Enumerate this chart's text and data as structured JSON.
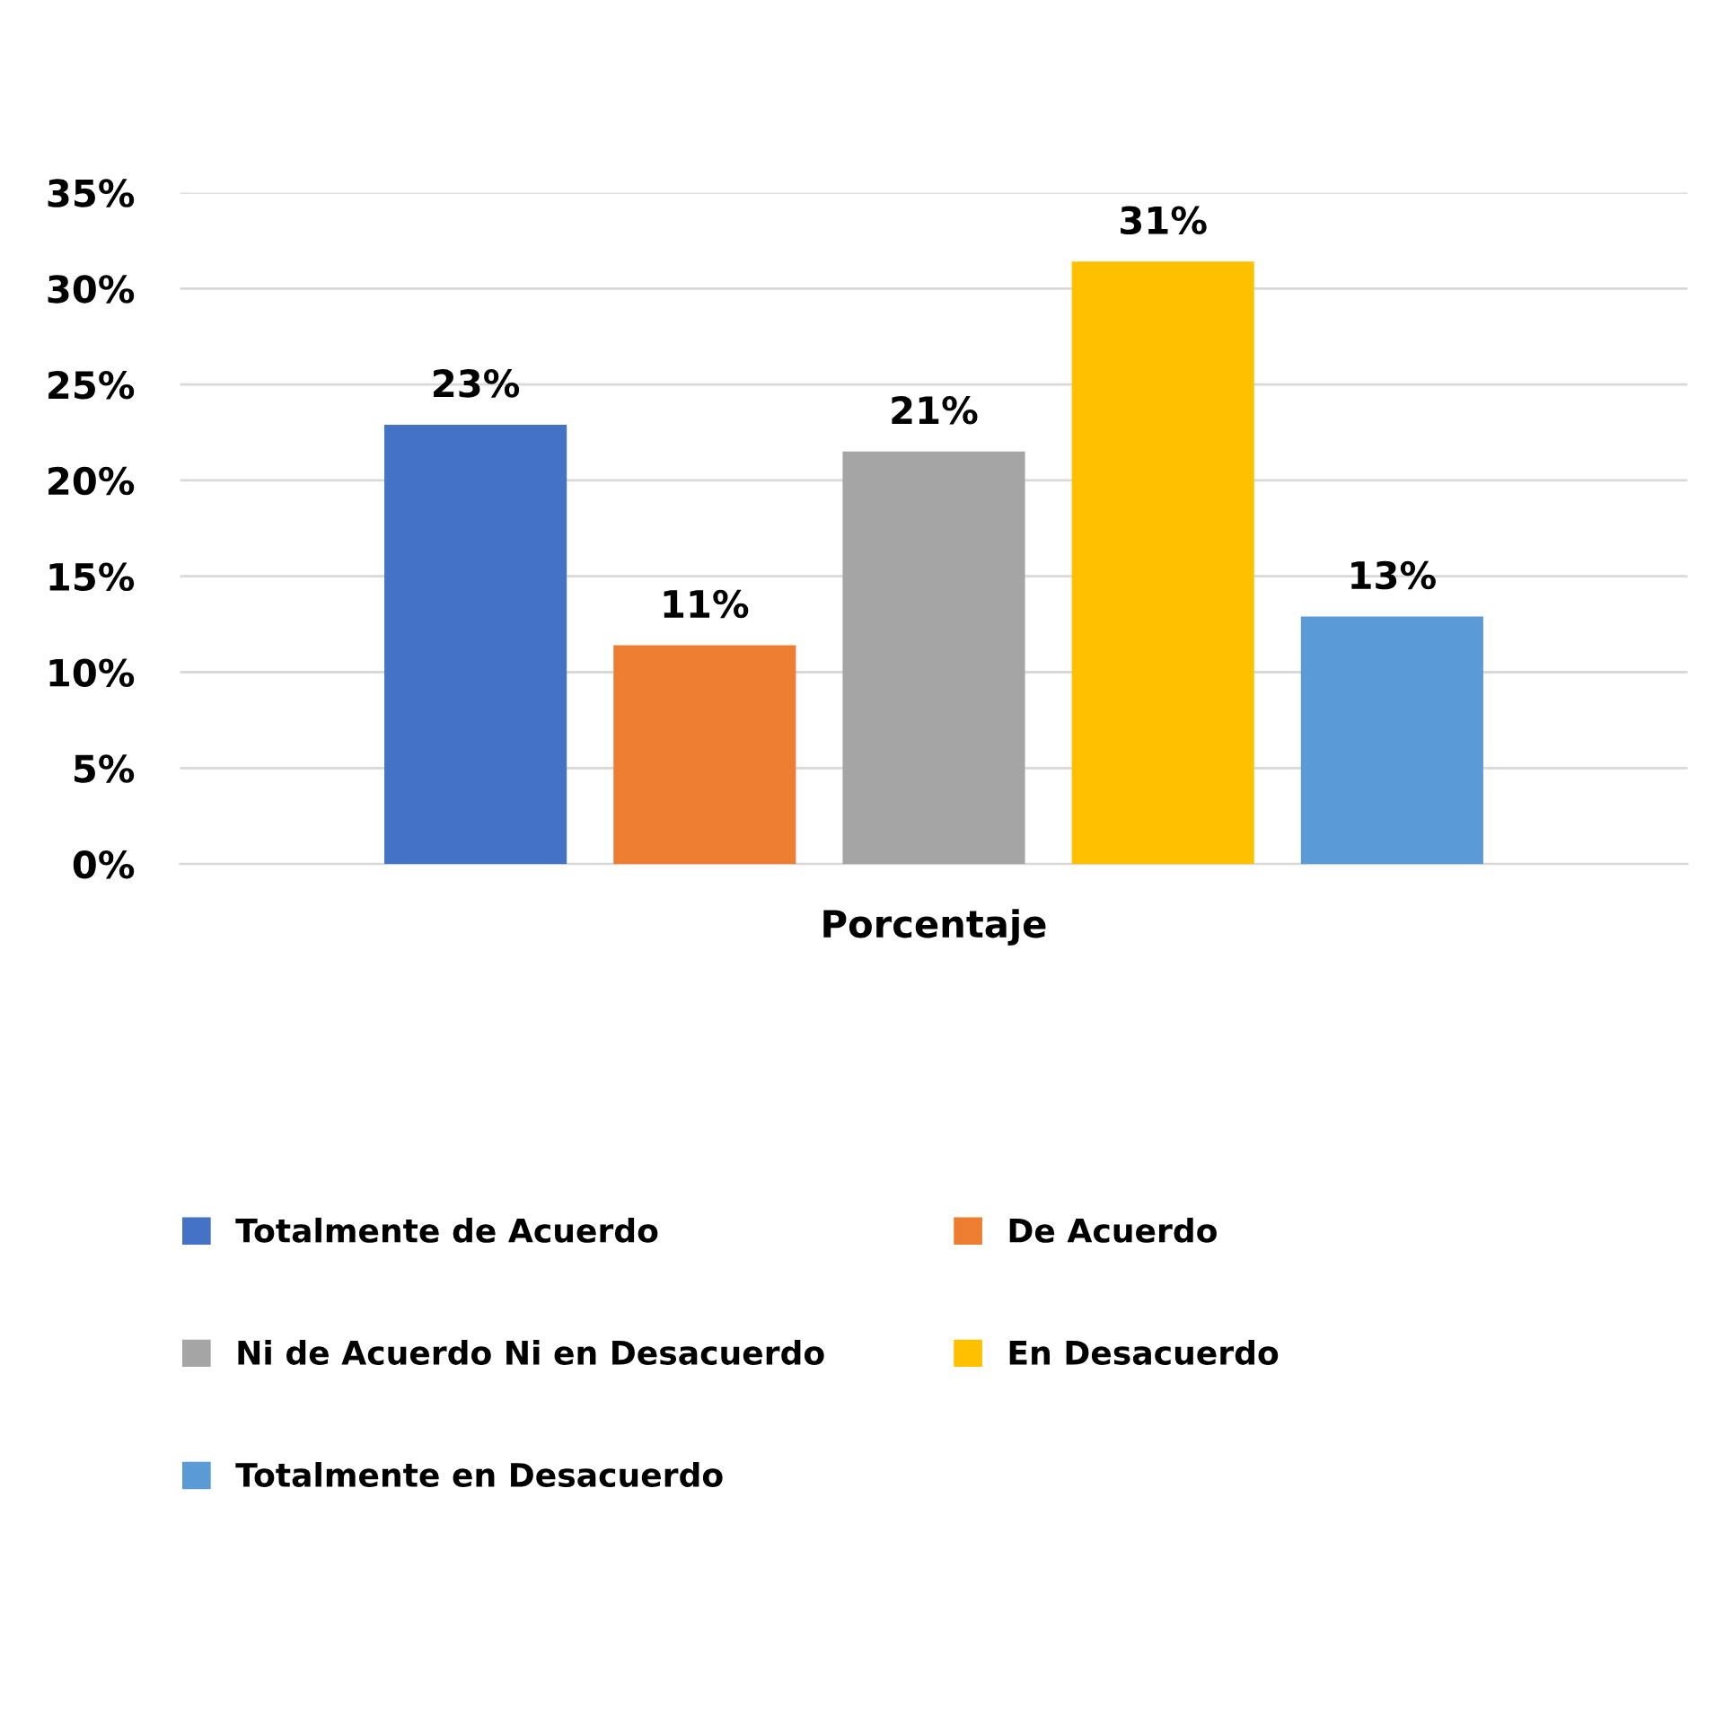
{
  "chart_data": {
    "type": "bar",
    "categories": [
      "Porcentaje"
    ],
    "series": [
      {
        "name": "Totalmente de Acuerdo",
        "color": "#4472c4",
        "values": [
          22.9
        ],
        "value_labels": [
          "23%"
        ]
      },
      {
        "name": "De Acuerdo",
        "color": "#ed7d31",
        "values": [
          11.4
        ],
        "value_labels": [
          "11%"
        ]
      },
      {
        "name": "Ni de Acuerdo Ni en Desacuerdo",
        "color": "#a5a5a5",
        "values": [
          21.5
        ],
        "value_labels": [
          "21%"
        ]
      },
      {
        "name": "En Desacuerdo",
        "color": "#ffc000",
        "values": [
          31.4
        ],
        "value_labels": [
          "31%"
        ]
      },
      {
        "name": "Totalmente en Desacuerdo",
        "color": "#5b9bd5",
        "values": [
          12.9
        ],
        "value_labels": [
          "13%"
        ]
      }
    ],
    "ylim": [
      0,
      35
    ],
    "yticks": [
      {
        "value": 0,
        "label": "0%"
      },
      {
        "value": 5,
        "label": "5%"
      },
      {
        "value": 10,
        "label": "10%"
      },
      {
        "value": 15,
        "label": "15%"
      },
      {
        "value": 20,
        "label": "20%"
      },
      {
        "value": 25,
        "label": "25%"
      },
      {
        "value": 30,
        "label": "30%"
      },
      {
        "value": 35,
        "label": "35%"
      }
    ],
    "grid": "y",
    "legend": "bottom"
  }
}
